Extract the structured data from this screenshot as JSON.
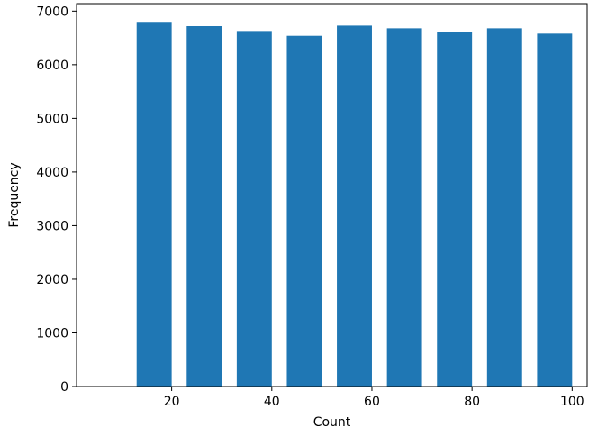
{
  "chart_data": {
    "type": "bar",
    "title": "",
    "xlabel": "Count",
    "ylabel": "Frequency",
    "x": [
      16.5,
      26.5,
      36.5,
      46.5,
      56.5,
      66.5,
      76.5,
      86.5,
      96.5
    ],
    "values": [
      6800,
      6720,
      6630,
      6540,
      6730,
      6680,
      6610,
      6680,
      6580
    ],
    "xlim": [
      1,
      103
    ],
    "ylim": [
      0,
      7140
    ],
    "xticks": [
      20,
      40,
      60,
      80,
      100
    ],
    "yticks": [
      0,
      1000,
      2000,
      3000,
      4000,
      5000,
      6000,
      7000
    ],
    "grid": false,
    "bar_color": "#1f77b4"
  }
}
